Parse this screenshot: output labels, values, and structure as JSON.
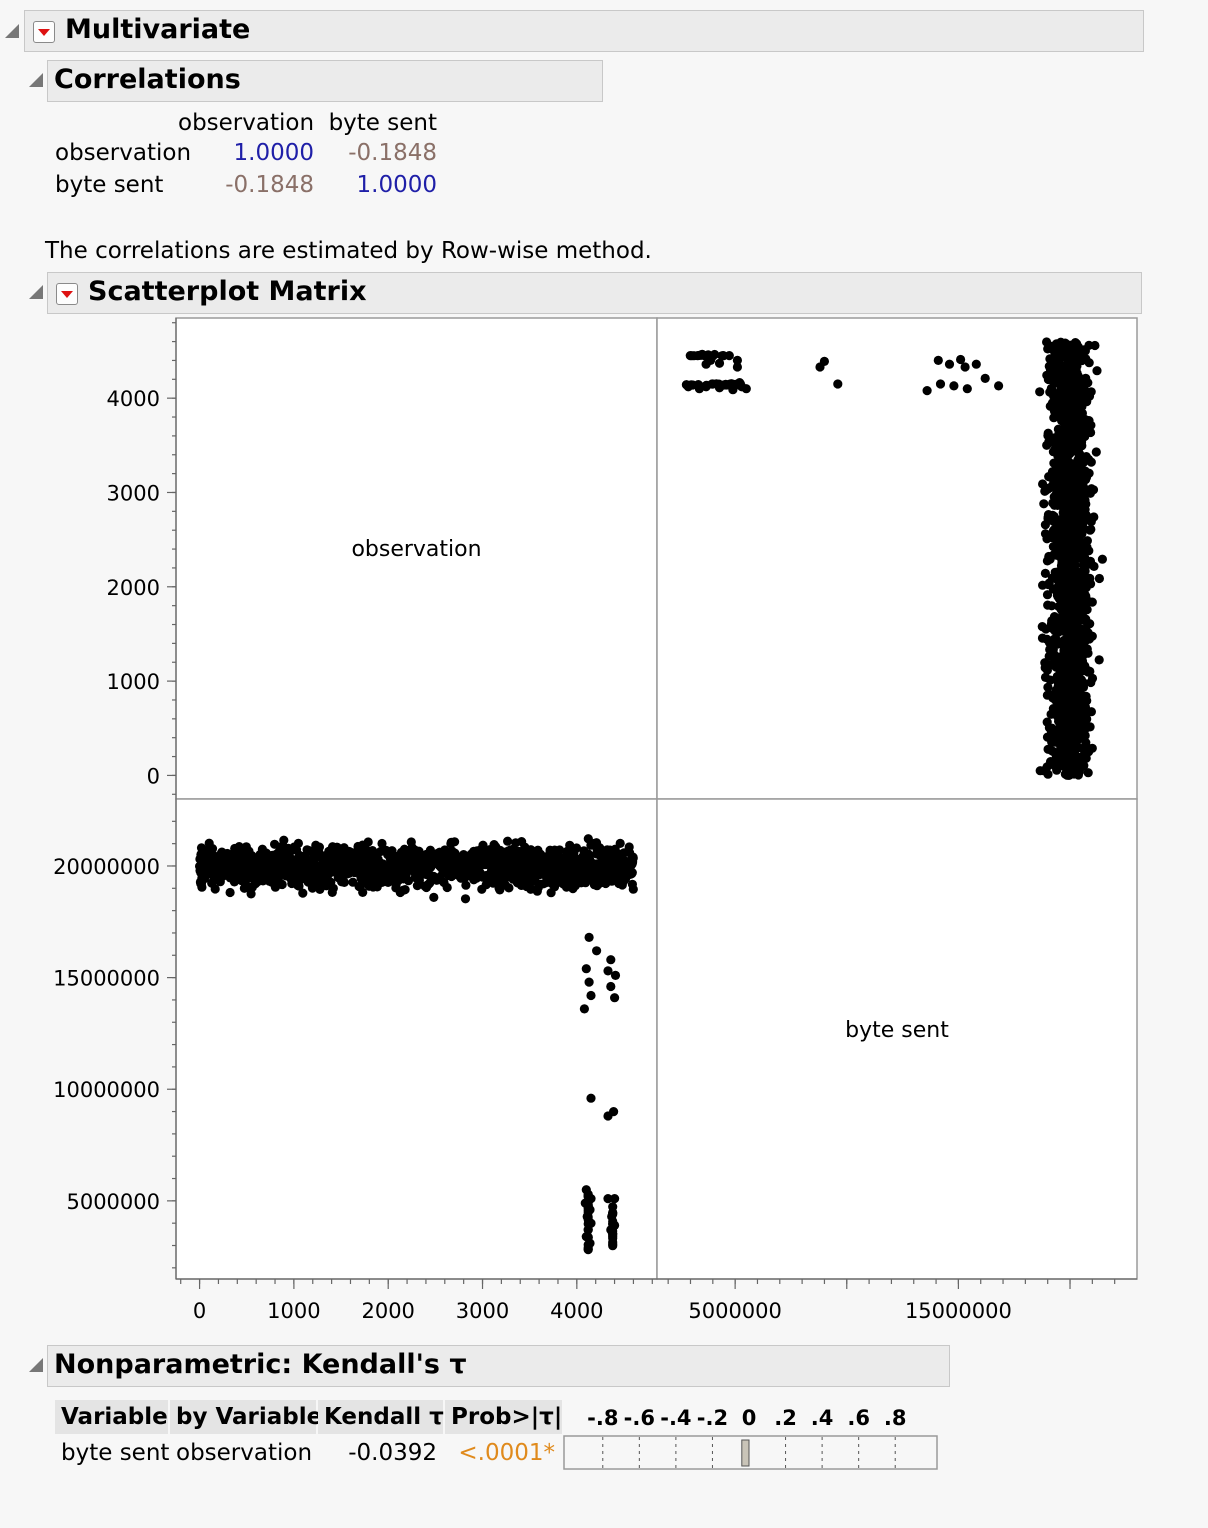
{
  "multivariate": {
    "title": "Multivariate"
  },
  "correlations": {
    "title": "Correlations",
    "columns": [
      "observation",
      "byte sent"
    ],
    "rows": [
      {
        "label": "observation",
        "values": [
          "1.0000",
          "-0.1848"
        ]
      },
      {
        "label": "byte sent",
        "values": [
          "-0.1848",
          "1.0000"
        ]
      }
    ],
    "note": "The correlations are estimated by Row-wise method."
  },
  "scatterplot_matrix": {
    "title": "Scatterplot Matrix"
  },
  "chart_data": {
    "type": "scatter",
    "title": "",
    "variables": [
      "observation",
      "byte sent"
    ],
    "diagonal_labels": [
      "observation",
      "byte sent"
    ],
    "axes": {
      "observation": {
        "range": [
          -250,
          4850
        ],
        "ticks": [
          "0",
          "1000",
          "2000",
          "3000",
          "4000"
        ],
        "tick_values": [
          0,
          1000,
          2000,
          3000,
          4000
        ]
      },
      "byte_sent": {
        "range": [
          1500000,
          23000000
        ],
        "y_ticks": [
          "5000000",
          "10000000",
          "15000000",
          "20000000"
        ],
        "y_tick_values": [
          5000000,
          10000000,
          15000000,
          20000000
        ],
        "x_ticks": [
          "5000000",
          "15000000"
        ],
        "x_tick_values": [
          5000000,
          15000000
        ]
      }
    },
    "grid": false,
    "cluster_summary": {
      "main_cluster": {
        "observation_range": [
          0,
          4600
        ],
        "byte_sent_range": [
          18000000,
          21600000
        ],
        "center_byte_sent": 20000000
      },
      "low_cluster": {
        "observation_range": [
          4100,
          4420
        ],
        "byte_sent_range": [
          2800000,
          17000000
        ]
      }
    },
    "low_points": [
      [
        4130,
        16800000
      ],
      [
        4210,
        16200000
      ],
      [
        4360,
        15800000
      ],
      [
        4100,
        15400000
      ],
      [
        4330,
        15300000
      ],
      [
        4410,
        15100000
      ],
      [
        4130,
        14800000
      ],
      [
        4360,
        14600000
      ],
      [
        4150,
        14200000
      ],
      [
        4400,
        14100000
      ],
      [
        4080,
        13600000
      ],
      [
        4150,
        9600000
      ],
      [
        4390,
        9000000
      ],
      [
        4330,
        8800000
      ],
      [
        4100,
        5500000
      ],
      [
        4120,
        5300000
      ],
      [
        4150,
        5100000
      ],
      [
        4330,
        5100000
      ],
      [
        4400,
        5100000
      ],
      [
        4090,
        4900000
      ],
      [
        4140,
        4600000
      ],
      [
        4110,
        4300000
      ],
      [
        4150,
        4000000
      ],
      [
        4370,
        4300000
      ],
      [
        4400,
        3900000
      ],
      [
        4120,
        3700000
      ],
      [
        4100,
        3400000
      ],
      [
        4140,
        3100000
      ],
      [
        4120,
        2900000
      ],
      [
        4360,
        3700000
      ]
    ]
  },
  "kendall": {
    "title": "Nonparametric: Kendall's τ",
    "headers": [
      "Variable",
      "by Variable",
      "Kendall τ",
      "Prob>|τ|"
    ],
    "bar_ticks": [
      "-.8",
      "-.6",
      "-.4",
      "-.2",
      "0",
      ".2",
      ".4",
      ".6",
      ".8"
    ],
    "rows": [
      {
        "variable": "byte sent",
        "by_variable": "observation",
        "tau": "-0.0392",
        "prob": "<.0001*",
        "tau_value": -0.0392
      }
    ],
    "colors": {
      "prob": "#e08a1c"
    }
  }
}
